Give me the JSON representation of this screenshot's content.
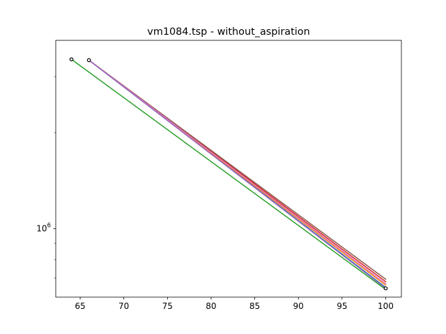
{
  "chart_data": {
    "type": "line",
    "title": "vm1084.tsp - without_aspiration",
    "xlabel": "",
    "ylabel": "",
    "xlim": [
      62.2,
      101.8
    ],
    "ylim": [
      610000,
      3900000
    ],
    "yscale": "log",
    "xticks": [
      65,
      70,
      75,
      80,
      85,
      90,
      95,
      100
    ],
    "yticks": [
      {
        "value": 1000000,
        "base": "10",
        "exp": "6"
      }
    ],
    "grid": false,
    "legend": "none",
    "series": [
      {
        "color": "#1f77b4",
        "points": [
          [
            66,
            3380000
          ],
          [
            100,
            654000
          ]
        ]
      },
      {
        "color": "#ff7f0e",
        "points": [
          [
            66,
            3380000
          ],
          [
            100,
            665000
          ]
        ]
      },
      {
        "color": "#d62728",
        "points": [
          [
            66,
            3380000
          ],
          [
            100,
            682000
          ]
        ]
      },
      {
        "color": "#8c564b",
        "points": [
          [
            66,
            3380000
          ],
          [
            100,
            694000
          ]
        ]
      },
      {
        "color": "#e377c2",
        "points": [
          [
            66,
            3380000
          ],
          [
            100,
            672000
          ]
        ]
      },
      {
        "color": "#9467bd",
        "points": [
          [
            66,
            3380000
          ],
          [
            100,
            650000
          ]
        ]
      },
      {
        "color": "#2ca02c",
        "points": [
          [
            64,
            3400000
          ],
          [
            100,
            645000
          ]
        ]
      }
    ],
    "markers": [
      {
        "x": 64,
        "y": 3400000
      },
      {
        "x": 66,
        "y": 3380000
      },
      {
        "x": 100,
        "y": 650000
      }
    ]
  }
}
